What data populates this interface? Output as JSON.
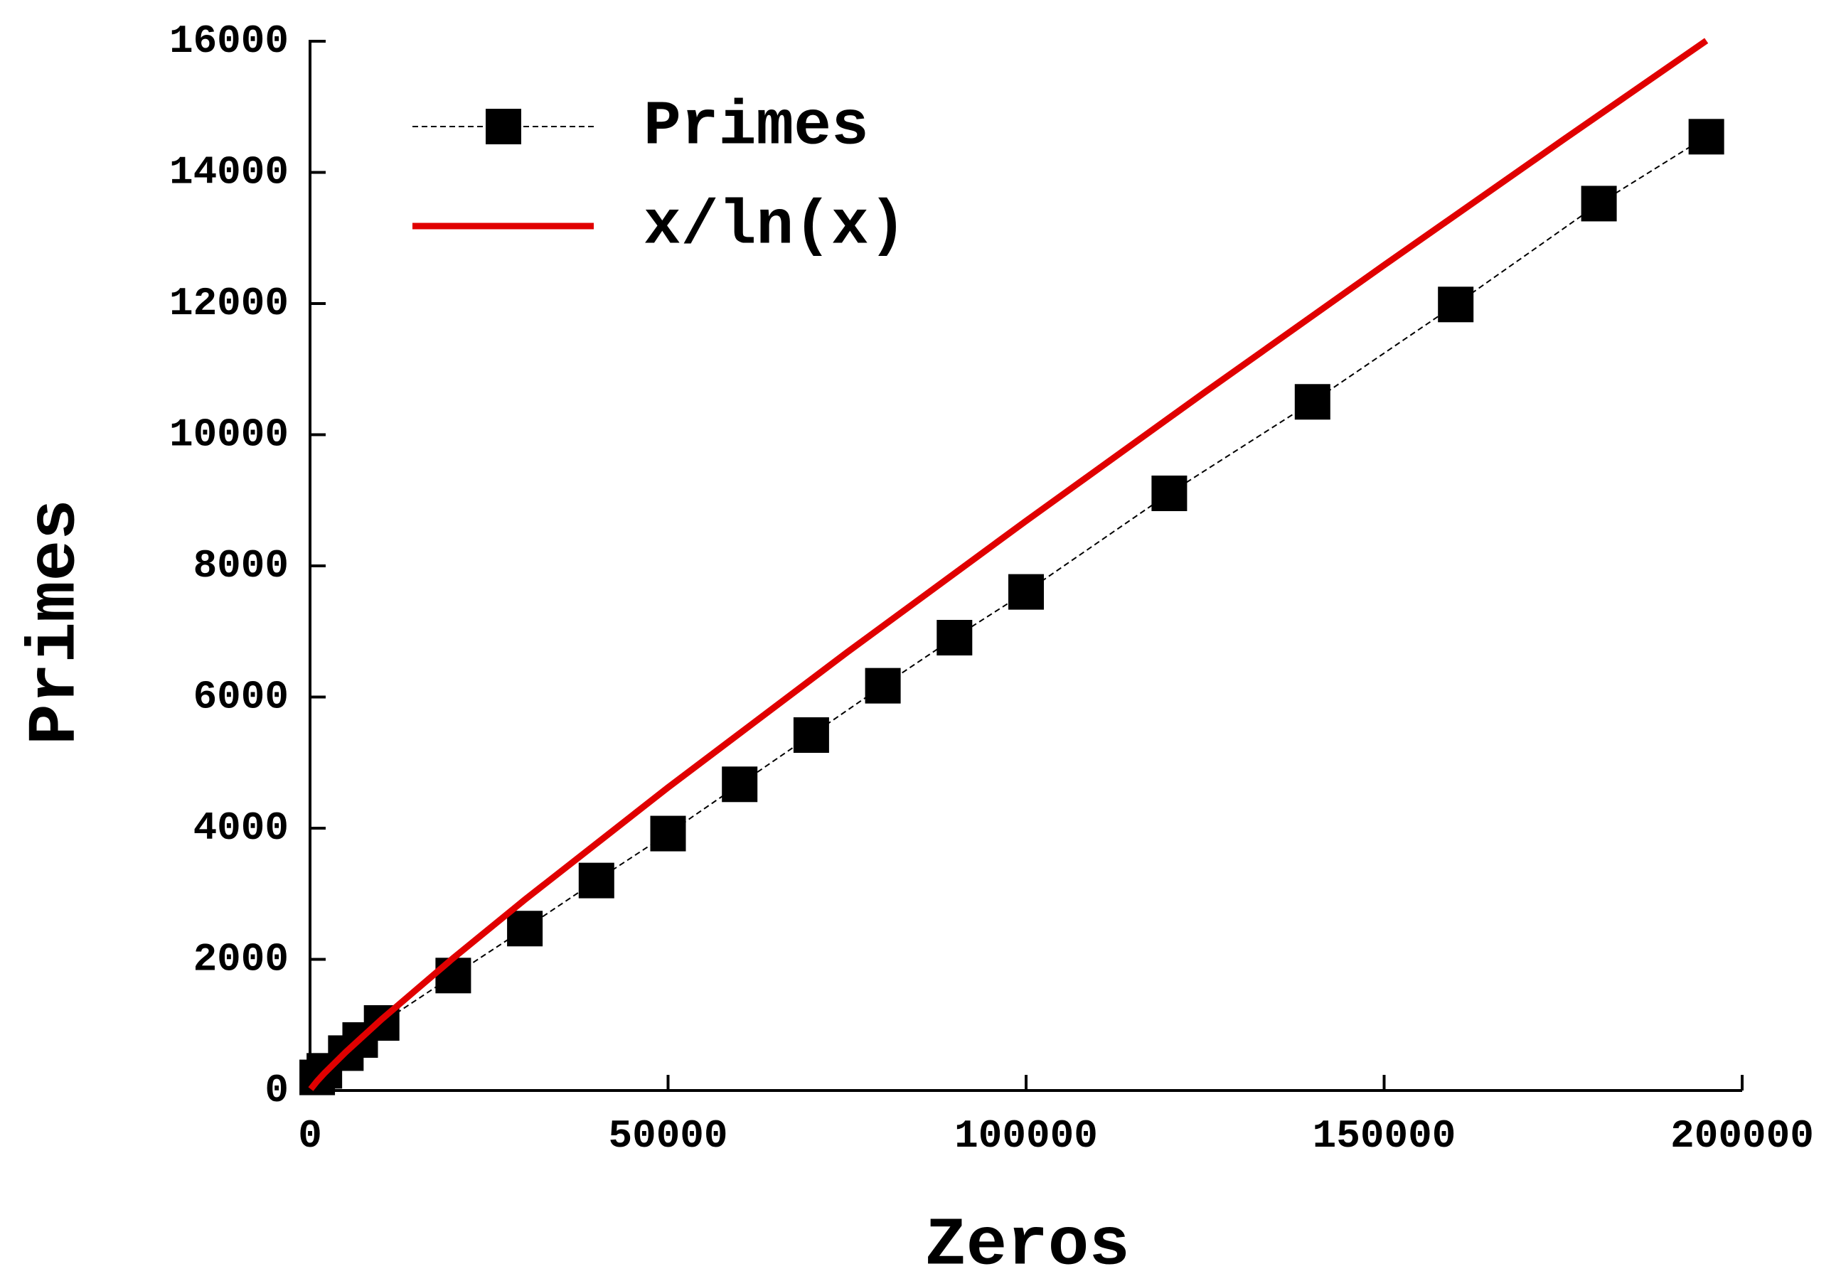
{
  "chart_data": {
    "type": "scatter",
    "x_label": "Zeros",
    "y_label": "Primes",
    "xlim": [
      0,
      200000
    ],
    "ylim": [
      0,
      16000
    ],
    "xticks": [
      0,
      50000,
      100000,
      150000,
      200000
    ],
    "yticks": [
      0,
      2000,
      4000,
      6000,
      8000,
      10000,
      12000,
      14000,
      16000
    ],
    "legend": "upper-left",
    "series": [
      {
        "name": "Primes",
        "color": "#000000",
        "marker": "square",
        "line": "dashed",
        "x": [
          1000,
          2000,
          5000,
          7000,
          10000,
          20000,
          30000,
          40000,
          50000,
          60000,
          70000,
          80000,
          90000,
          100000,
          120000,
          140000,
          160000,
          180000,
          195000
        ],
        "values": [
          200,
          300,
          570,
          770,
          1030,
          1753,
          2469,
          3202,
          3918,
          4669,
          5420,
          6172,
          6905,
          7603,
          9106,
          10501,
          11986,
          13524,
          14544
        ]
      },
      {
        "name": "x/ln(x)",
        "color": "#e00000",
        "marker": "none",
        "line": "solid",
        "x": [
          100,
          1000,
          2000,
          5000,
          10000,
          20000,
          30000,
          50000,
          75000,
          100000,
          125000,
          150000,
          175000,
          195000
        ],
        "values": [
          21.7,
          144.8,
          263.1,
          587.1,
          1085.7,
          2019.5,
          2910.1,
          4621.2,
          6681.4,
          8685.9,
          10651,
          12586,
          14496,
          16009
        ]
      }
    ]
  }
}
